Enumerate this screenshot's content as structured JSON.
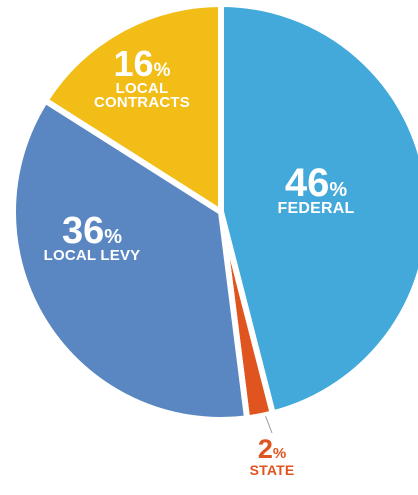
{
  "chart_data": {
    "type": "pie",
    "slices": [
      {
        "key": "federal",
        "value": 46,
        "pct_text": "46",
        "pct_sign": "%",
        "label_lines": [
          "FEDERAL"
        ],
        "color": "#43a8da",
        "label_placement": "inside"
      },
      {
        "key": "state",
        "value": 2,
        "pct_text": "2",
        "pct_sign": "%",
        "label_lines": [
          "STATE"
        ],
        "color": "#e0541f",
        "label_placement": "outside"
      },
      {
        "key": "local-levy",
        "value": 36,
        "pct_text": "36",
        "pct_sign": "%",
        "label_lines": [
          "LOCAL LEVY"
        ],
        "color": "#5a87c2",
        "label_placement": "inside"
      },
      {
        "key": "local-contracts",
        "value": 16,
        "pct_text": "16",
        "pct_sign": "%",
        "label_lines": [
          "LOCAL",
          "CONTRACTS"
        ],
        "color": "#f2bd17",
        "label_placement": "inside"
      }
    ],
    "start_angle": "12 o'clock",
    "direction": "clockwise",
    "legend": "none"
  }
}
